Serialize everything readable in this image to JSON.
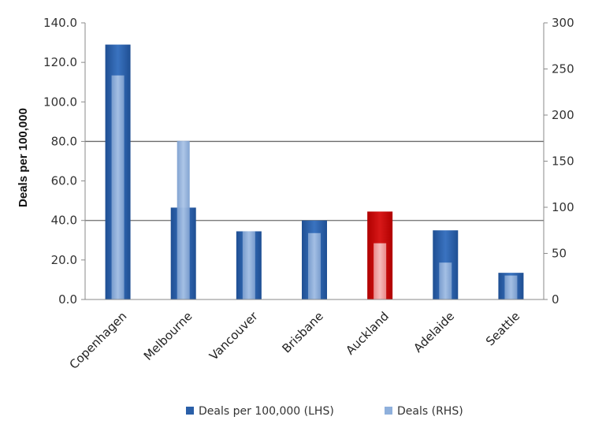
{
  "chart_data": {
    "type": "bar",
    "categories": [
      "Copenhagen",
      "Melbourne",
      "Vancouver",
      "Brisbane",
      "Auckland",
      "Adelaide",
      "Seattle"
    ],
    "series": [
      {
        "name": "Deals per 100,000 (LHS)",
        "axis": "left",
        "values": [
          129,
          46.5,
          34.5,
          40,
          44.5,
          35,
          13.5
        ],
        "color": "#2a5fa8",
        "highlight": {
          "category": "Auckland",
          "color": "#c00000"
        }
      },
      {
        "name": "Deals (RHS)",
        "axis": "right",
        "values": [
          243,
          172,
          74,
          72,
          61,
          40,
          26
        ],
        "color": "#8fb0dc",
        "highlight": {
          "category": "Auckland",
          "color": "#f2a3a3"
        }
      }
    ],
    "ylabel": "Deals per 100,000",
    "ylim": [
      0,
      140
    ],
    "y_ticks": [
      "0.0",
      "20.0",
      "40.0",
      "60.0",
      "80.0",
      "100.0",
      "120.0",
      "140.0"
    ],
    "y2lim": [
      0,
      300
    ],
    "y2_ticks": [
      "0",
      "50",
      "100",
      "150",
      "200",
      "250",
      "300"
    ],
    "gridlines": [
      40,
      80
    ],
    "legend_position": "bottom"
  }
}
